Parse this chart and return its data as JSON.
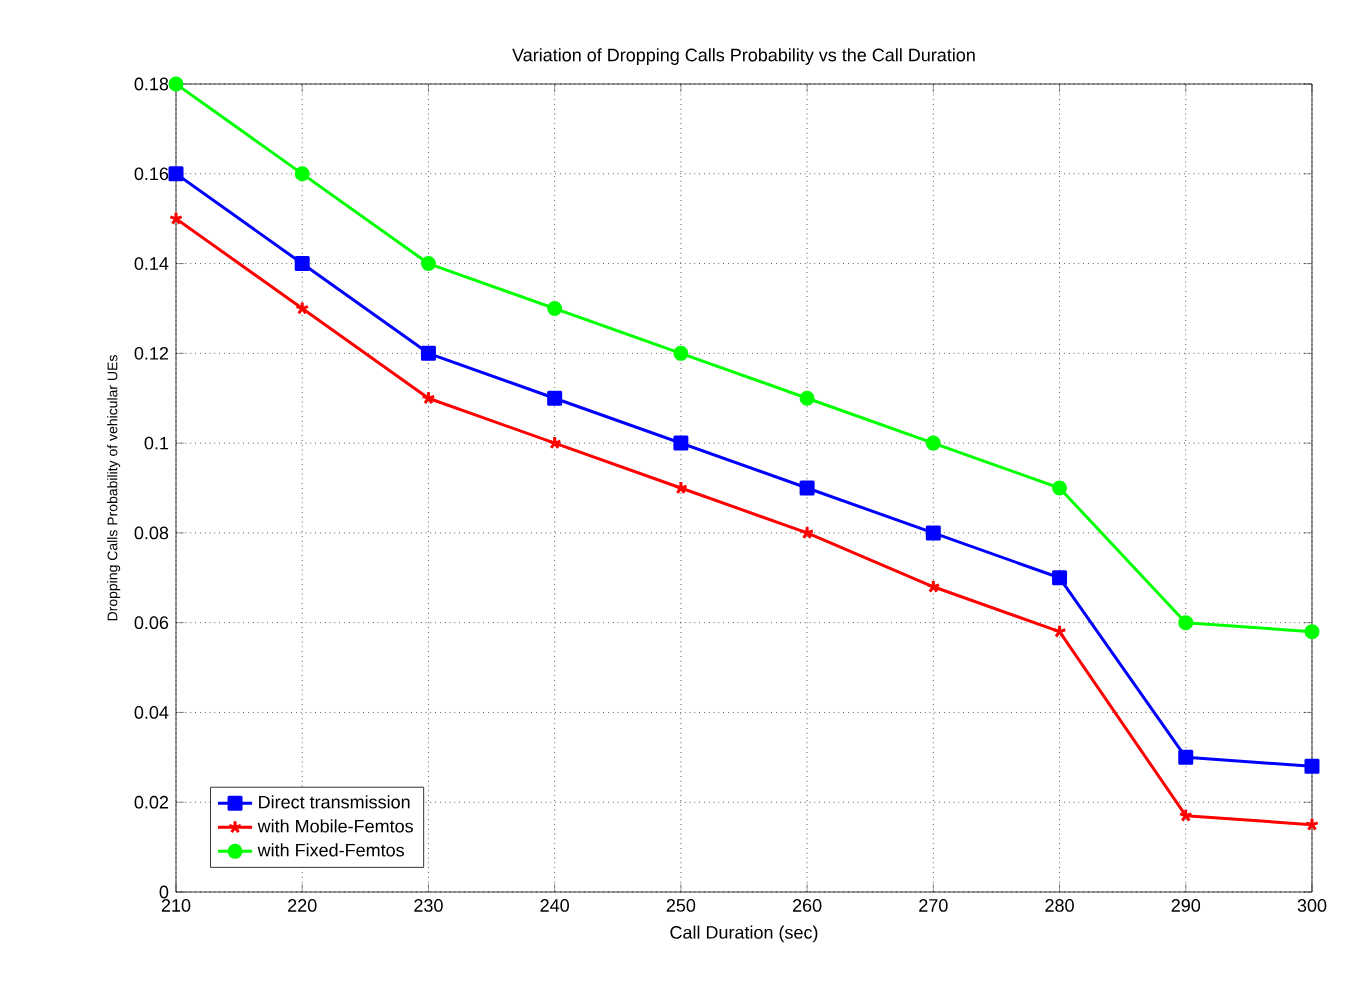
{
  "chart_data": {
    "type": "line",
    "title": "Variation of Dropping Calls Probability vs the Call Duration",
    "xlabel": "Call Duration (sec)",
    "ylabel": "Dropping Calls Probability of vehicular UEs",
    "x": [
      210,
      220,
      230,
      240,
      250,
      260,
      270,
      280,
      290,
      300
    ],
    "series": [
      {
        "name": "Direct transmission",
        "color": "#0000ff",
        "marker": "square",
        "values": [
          0.16,
          0.14,
          0.12,
          0.11,
          0.1,
          0.09,
          0.08,
          0.07,
          0.03,
          0.028
        ]
      },
      {
        "name": "with Mobile-Femtos",
        "color": "#ff0000",
        "marker": "cross",
        "values": [
          0.15,
          0.13,
          0.11,
          0.1,
          0.09,
          0.08,
          0.068,
          0.058,
          0.017,
          0.015
        ]
      },
      {
        "name": "with Fixed-Femtos",
        "color": "#00ff00",
        "marker": "circle",
        "values": [
          0.18,
          0.16,
          0.14,
          0.13,
          0.12,
          0.11,
          0.1,
          0.09,
          0.06,
          0.058
        ]
      }
    ],
    "xlim": [
      210,
      300
    ],
    "ylim": [
      0,
      0.18
    ],
    "xticks": [
      210,
      220,
      230,
      240,
      250,
      260,
      270,
      280,
      290,
      300
    ],
    "yticks": [
      0,
      0.02,
      0.04,
      0.06,
      0.08,
      0.1,
      0.12,
      0.14,
      0.16,
      0.18
    ],
    "grid": true,
    "legend": "bottom left",
    "line_style": "solid"
  }
}
